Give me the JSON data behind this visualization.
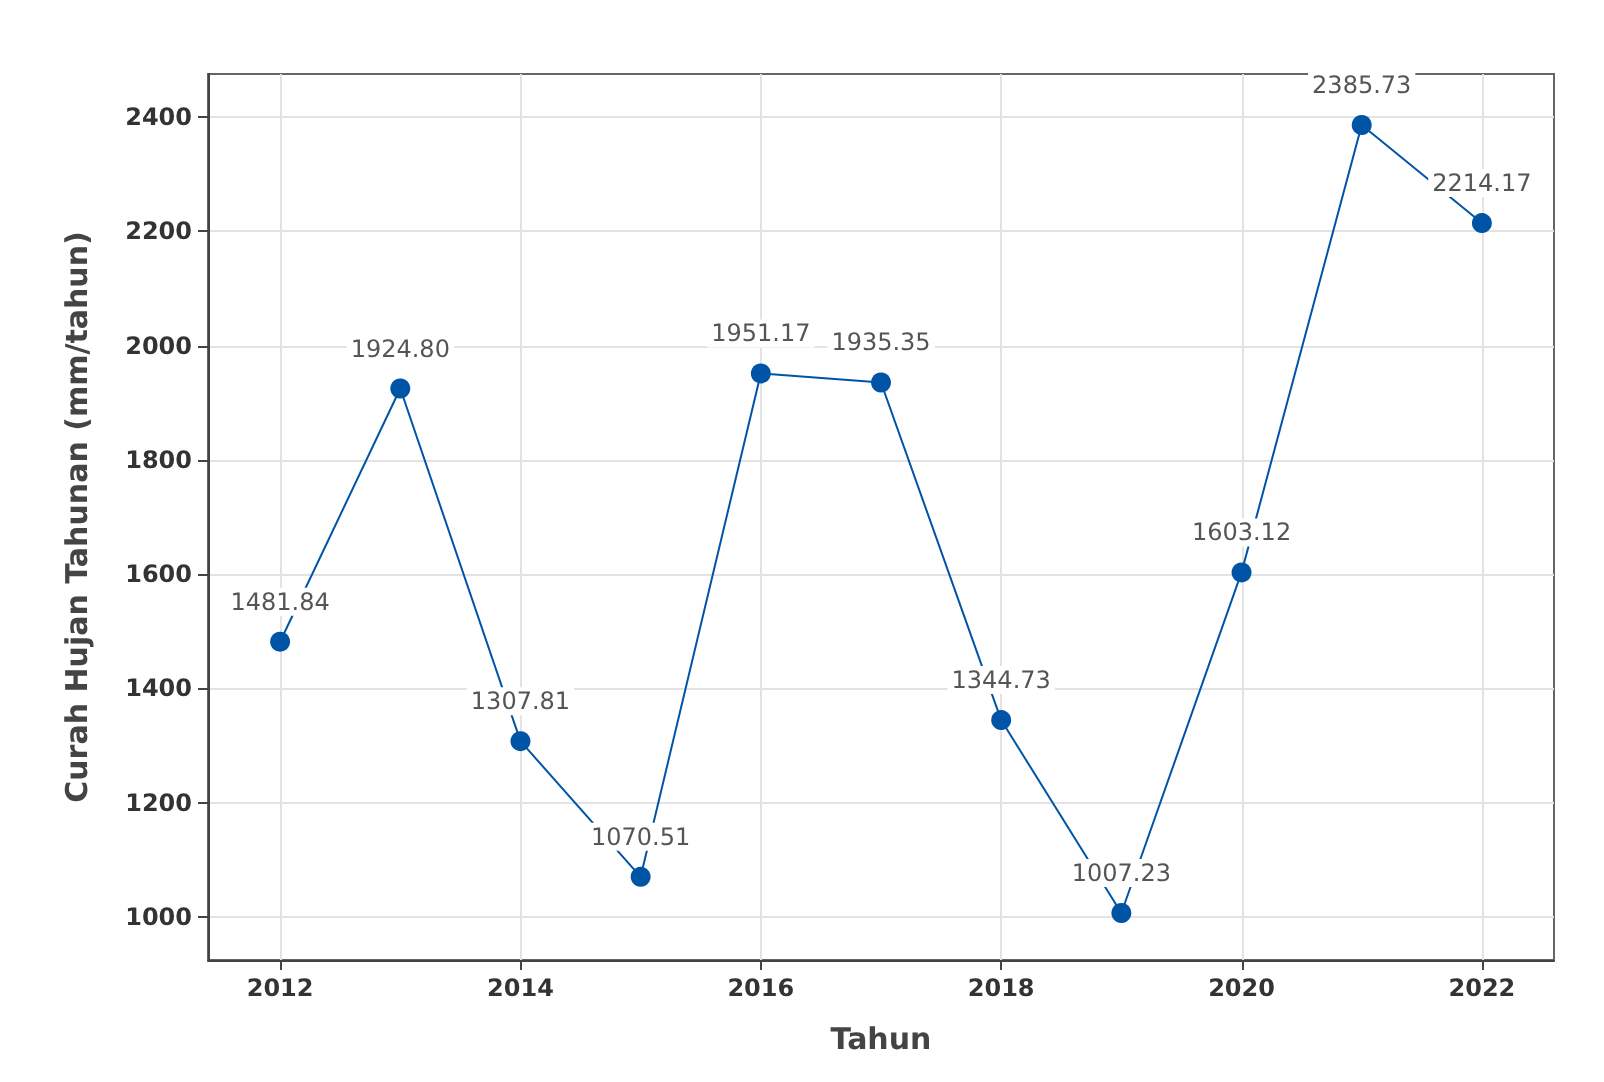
{
  "chart_data": {
    "type": "line",
    "xlabel": "Tahun",
    "ylabel": "Curah Hujan Tahunan (mm/tahun)",
    "x": [
      2012,
      2013,
      2014,
      2015,
      2016,
      2017,
      2018,
      2019,
      2020,
      2021,
      2022
    ],
    "series": [
      {
        "color": "#0054a6",
        "values": [
          1481.84,
          1924.8,
          1307.81,
          1070.51,
          1951.17,
          1935.35,
          1344.73,
          1007.23,
          1603.12,
          2385.73,
          2214.17
        ],
        "value_labels": [
          "1481.84",
          "1924.80",
          "1307.81",
          "1070.51",
          "1951.17",
          "1935.35",
          "1344.73",
          "1007.23",
          "1603.12",
          "2385.73",
          "2214.17"
        ]
      }
    ],
    "xlim": [
      2011.4,
      2022.6
    ],
    "xticks": [
      2012,
      2014,
      2016,
      2018,
      2020,
      2022
    ],
    "ylim": [
      925,
      2475
    ],
    "yticks": [
      1000,
      1200,
      1400,
      1600,
      1800,
      2000,
      2200,
      2400
    ],
    "grid": true,
    "marker": "circle",
    "line_style": "solid"
  }
}
